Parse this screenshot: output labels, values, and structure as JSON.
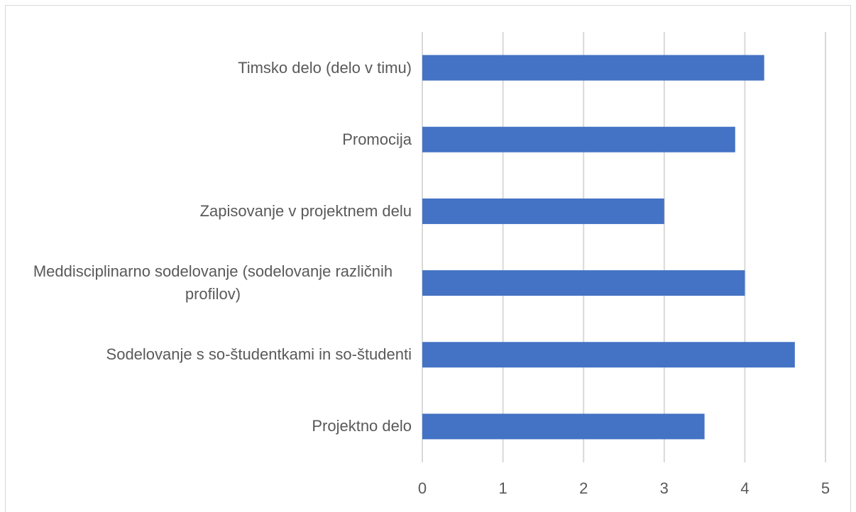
{
  "chart_data": {
    "type": "bar",
    "orientation": "horizontal",
    "categories": [
      "Timsko delo (delo v timu)",
      "Promocija",
      "Zapisovanje v projektnem delu",
      "Meddisciplinarno sodelovanje (sodelovanje različnih profilov)",
      "Sodelovanje s so-študentkami in so-študenti",
      "Projektno delo"
    ],
    "values": [
      4.24,
      3.88,
      3.0,
      4.0,
      4.62,
      3.5
    ],
    "color": "#4472c4",
    "xlim": [
      0,
      5
    ],
    "xticks": [
      0,
      1,
      2,
      3,
      4,
      5
    ],
    "grid": true
  }
}
